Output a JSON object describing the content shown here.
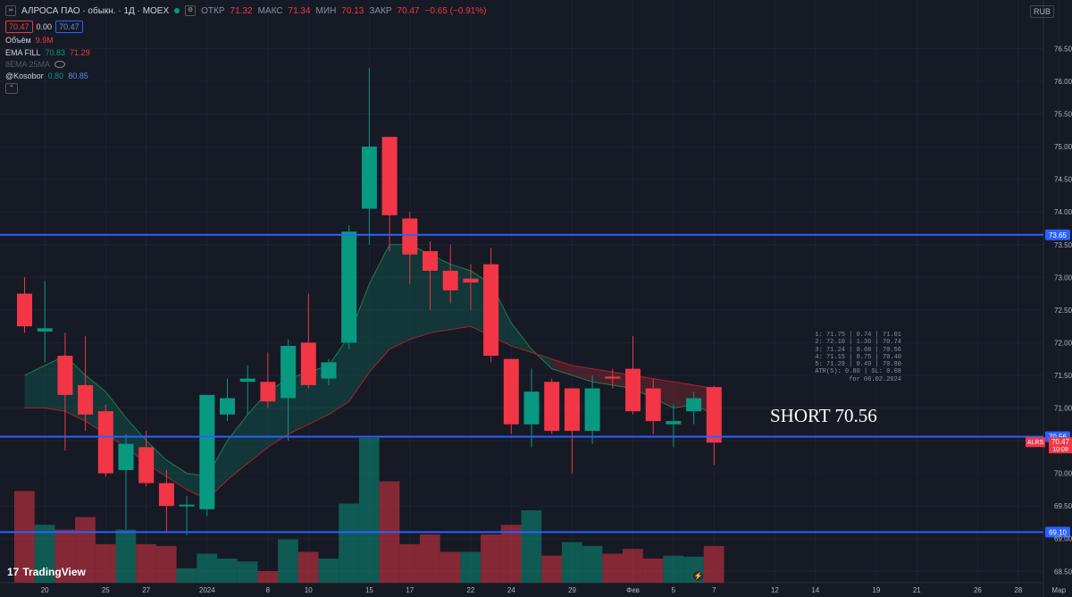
{
  "header": {
    "title": "АЛРОСА ПАО · обыкн. · 1Д · MOEX",
    "o_label": "ОТКР",
    "o": "71.32",
    "h_label": "МАКС",
    "h": "71.34",
    "l_label": "МИН",
    "l": "70.13",
    "c_label": "ЗАКР",
    "c": "70.47",
    "chg": "−0.65 (−0.91%)"
  },
  "price_boxes": {
    "bid": "70.47",
    "spread": "0.00",
    "ask": "70.47"
  },
  "indicators": {
    "volume": {
      "name": "Объём",
      "value": "9.9M"
    },
    "ema": {
      "name": "EMA FILL",
      "v1": "70.83",
      "v2": "71.29"
    },
    "sma": {
      "name": "8EMA 25MA"
    },
    "kosobor": {
      "name": "@Kosobor",
      "v1": "0.80",
      "v2": "80.85"
    }
  },
  "currency": "RUB",
  "stats": [
    "1:     71.75 |     0.74 |     71.01",
    "2:     72.10 |     1.36 |     70.74",
    "3:     71.24 |     0.68 |     70.56",
    "4:     71.15 |     0.75 |     70.40",
    "5:     71.29 |     0.49 |     70.80",
    "ATR(5): 0.80 | SL: 0.08",
    "for 06.02.2024"
  ],
  "short_label": "SHORT 70.56",
  "logo": {
    "mark": "17",
    "text": "TradingView"
  },
  "colors": {
    "up": "#089981",
    "down": "#f23645",
    "level": "#2962ff",
    "bg": "#161a25"
  },
  "chart_data": {
    "type": "candlestick",
    "y_ticks": [
      "68.50",
      "69.00",
      "69.50",
      "70.00",
      "70.50",
      "71.00",
      "71.50",
      "72.00",
      "72.50",
      "73.00",
      "73.50",
      "74.00",
      "74.50",
      "75.00",
      "75.50",
      "76.00",
      "76.50"
    ],
    "ylim": [
      68.3,
      77.3
    ],
    "x_ticks": [
      {
        "label": "20",
        "i": 1
      },
      {
        "label": "25",
        "i": 4
      },
      {
        "label": "27",
        "i": 6
      },
      {
        "label": "2024",
        "i": 9
      },
      {
        "label": "8",
        "i": 12
      },
      {
        "label": "10",
        "i": 14
      },
      {
        "label": "15",
        "i": 17
      },
      {
        "label": "17",
        "i": 19
      },
      {
        "label": "22",
        "i": 22
      },
      {
        "label": "24",
        "i": 24
      },
      {
        "label": "29",
        "i": 27
      },
      {
        "label": "Фев",
        "i": 30
      },
      {
        "label": "5",
        "i": 32
      },
      {
        "label": "7",
        "i": 34
      },
      {
        "label": "12",
        "i": 37
      },
      {
        "label": "14",
        "i": 39
      },
      {
        "label": "19",
        "i": 42
      },
      {
        "label": "21",
        "i": 44
      },
      {
        "label": "26",
        "i": 47
      },
      {
        "label": "28",
        "i": 49
      },
      {
        "label": "Мар",
        "i": 51
      }
    ],
    "candles": [
      {
        "i": 0,
        "o": 72.75,
        "h": 73.0,
        "l": 72.15,
        "c": 72.25
      },
      {
        "i": 1,
        "o": 72.17,
        "h": 72.95,
        "l": 71.7,
        "c": 72.22
      },
      {
        "i": 2,
        "o": 71.8,
        "h": 72.15,
        "l": 70.35,
        "c": 71.2
      },
      {
        "i": 3,
        "o": 71.35,
        "h": 72.1,
        "l": 70.65,
        "c": 70.9
      },
      {
        "i": 4,
        "o": 70.95,
        "h": 71.05,
        "l": 69.95,
        "c": 70.0
      },
      {
        "i": 5,
        "o": 70.05,
        "h": 70.6,
        "l": 69.15,
        "c": 70.45
      },
      {
        "i": 6,
        "o": 70.4,
        "h": 70.65,
        "l": 69.8,
        "c": 69.85
      },
      {
        "i": 7,
        "o": 69.85,
        "h": 70.05,
        "l": 69.1,
        "c": 69.5
      },
      {
        "i": 8,
        "o": 69.5,
        "h": 69.65,
        "l": 69.05,
        "c": 69.52
      },
      {
        "i": 9,
        "o": 69.45,
        "h": 71.2,
        "l": 69.35,
        "c": 71.2
      },
      {
        "i": 10,
        "o": 70.9,
        "h": 71.45,
        "l": 70.8,
        "c": 71.15
      },
      {
        "i": 11,
        "o": 71.4,
        "h": 71.65,
        "l": 70.9,
        "c": 71.45
      },
      {
        "i": 12,
        "o": 71.4,
        "h": 71.85,
        "l": 71.0,
        "c": 71.1
      },
      {
        "i": 13,
        "o": 71.15,
        "h": 72.05,
        "l": 70.5,
        "c": 71.95
      },
      {
        "i": 14,
        "o": 72.0,
        "h": 72.75,
        "l": 71.3,
        "c": 71.35
      },
      {
        "i": 15,
        "o": 71.45,
        "h": 71.75,
        "l": 71.35,
        "c": 71.7
      },
      {
        "i": 16,
        "o": 72.0,
        "h": 73.8,
        "l": 71.9,
        "c": 73.7
      },
      {
        "i": 17,
        "o": 74.05,
        "h": 76.2,
        "l": 73.5,
        "c": 75.0
      },
      {
        "i": 18,
        "o": 75.15,
        "h": 75.15,
        "l": 73.4,
        "c": 73.95
      },
      {
        "i": 19,
        "o": 73.9,
        "h": 74.0,
        "l": 72.9,
        "c": 73.35
      },
      {
        "i": 20,
        "o": 73.4,
        "h": 73.55,
        "l": 72.5,
        "c": 73.1
      },
      {
        "i": 21,
        "o": 73.1,
        "h": 73.5,
        "l": 72.6,
        "c": 72.8
      },
      {
        "i": 22,
        "o": 72.98,
        "h": 73.2,
        "l": 72.5,
        "c": 72.92
      },
      {
        "i": 23,
        "o": 73.2,
        "h": 73.45,
        "l": 71.7,
        "c": 71.8
      },
      {
        "i": 24,
        "o": 71.75,
        "h": 71.75,
        "l": 70.6,
        "c": 70.75
      },
      {
        "i": 25,
        "o": 70.75,
        "h": 71.6,
        "l": 70.4,
        "c": 71.25
      },
      {
        "i": 26,
        "o": 71.4,
        "h": 71.45,
        "l": 70.6,
        "c": 70.65
      },
      {
        "i": 27,
        "o": 71.3,
        "h": 71.3,
        "l": 70.0,
        "c": 70.65
      },
      {
        "i": 28,
        "o": 70.65,
        "h": 71.5,
        "l": 70.45,
        "c": 71.3
      },
      {
        "i": 29,
        "o": 71.48,
        "h": 71.6,
        "l": 71.3,
        "c": 71.45
      },
      {
        "i": 30,
        "o": 71.6,
        "h": 72.1,
        "l": 70.9,
        "c": 70.95
      },
      {
        "i": 31,
        "o": 71.3,
        "h": 71.45,
        "l": 70.6,
        "c": 70.8
      },
      {
        "i": 32,
        "o": 70.75,
        "h": 71.05,
        "l": 70.4,
        "c": 70.8
      },
      {
        "i": 33,
        "o": 70.95,
        "h": 71.25,
        "l": 70.75,
        "c": 71.15
      },
      {
        "i": 34,
        "o": 71.32,
        "h": 71.34,
        "l": 70.13,
        "c": 70.47
      }
    ],
    "ema_fast": [
      71.5,
      71.65,
      71.8,
      71.5,
      71.25,
      70.85,
      70.5,
      70.2,
      70.0,
      69.95,
      70.5,
      70.9,
      71.25,
      71.45,
      71.55,
      71.65,
      72.1,
      72.9,
      73.5,
      73.5,
      73.35,
      73.2,
      73.1,
      72.9,
      72.3,
      71.9,
      71.6,
      71.5,
      71.4,
      71.35,
      71.3,
      71.15,
      71.0,
      71.05,
      70.9
    ],
    "ema_slow": [
      71.0,
      71.0,
      70.95,
      70.8,
      70.6,
      70.4,
      70.15,
      69.95,
      69.75,
      69.6,
      69.9,
      70.15,
      70.4,
      70.6,
      70.75,
      70.9,
      71.1,
      71.55,
      71.9,
      72.05,
      72.15,
      72.2,
      72.25,
      72.1,
      71.95,
      71.85,
      71.75,
      71.65,
      71.6,
      71.55,
      71.5,
      71.45,
      71.4,
      71.35,
      71.3
    ],
    "volume": [
      {
        "i": 0,
        "v": 0.95,
        "up": false
      },
      {
        "i": 1,
        "v": 0.6,
        "up": true
      },
      {
        "i": 2,
        "v": 0.55,
        "up": false
      },
      {
        "i": 3,
        "v": 0.68,
        "up": false
      },
      {
        "i": 4,
        "v": 0.4,
        "up": false
      },
      {
        "i": 5,
        "v": 0.55,
        "up": true
      },
      {
        "i": 6,
        "v": 0.4,
        "up": false
      },
      {
        "i": 7,
        "v": 0.38,
        "up": false
      },
      {
        "i": 8,
        "v": 0.15,
        "up": true
      },
      {
        "i": 9,
        "v": 0.3,
        "up": true
      },
      {
        "i": 10,
        "v": 0.25,
        "up": true
      },
      {
        "i": 11,
        "v": 0.22,
        "up": true
      },
      {
        "i": 12,
        "v": 0.12,
        "up": false
      },
      {
        "i": 13,
        "v": 0.45,
        "up": true
      },
      {
        "i": 14,
        "v": 0.32,
        "up": false
      },
      {
        "i": 15,
        "v": 0.25,
        "up": true
      },
      {
        "i": 16,
        "v": 0.82,
        "up": true
      },
      {
        "i": 17,
        "v": 1.5,
        "up": true
      },
      {
        "i": 18,
        "v": 1.05,
        "up": false
      },
      {
        "i": 19,
        "v": 0.4,
        "up": false
      },
      {
        "i": 20,
        "v": 0.5,
        "up": false
      },
      {
        "i": 21,
        "v": 0.32,
        "up": false
      },
      {
        "i": 22,
        "v": 0.32,
        "up": true
      },
      {
        "i": 23,
        "v": 0.5,
        "up": false
      },
      {
        "i": 24,
        "v": 0.6,
        "up": false
      },
      {
        "i": 25,
        "v": 0.75,
        "up": true
      },
      {
        "i": 26,
        "v": 0.28,
        "up": false
      },
      {
        "i": 27,
        "v": 0.42,
        "up": true
      },
      {
        "i": 28,
        "v": 0.38,
        "up": true
      },
      {
        "i": 29,
        "v": 0.3,
        "up": false
      },
      {
        "i": 30,
        "v": 0.35,
        "up": false
      },
      {
        "i": 31,
        "v": 0.25,
        "up": false
      },
      {
        "i": 32,
        "v": 0.28,
        "up": true
      },
      {
        "i": 33,
        "v": 0.27,
        "up": true
      },
      {
        "i": 34,
        "v": 0.38,
        "up": false
      }
    ],
    "levels": [
      {
        "price": 73.65,
        "label": "73.65"
      },
      {
        "price": 70.56,
        "label": "70.56"
      },
      {
        "price": 69.1,
        "label": "69.10"
      }
    ],
    "last_price": {
      "ticker": "ALRS",
      "price": "70.47",
      "time": "10:09"
    }
  }
}
